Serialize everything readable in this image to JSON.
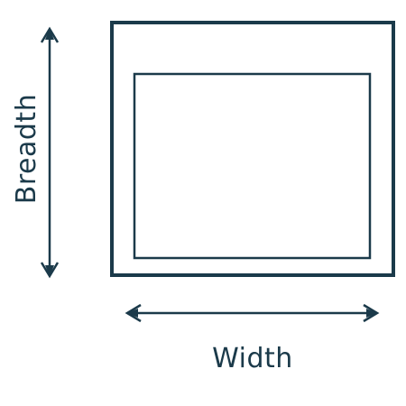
{
  "colors": {
    "stroke": "#1b3a4a",
    "background": "#ffffff"
  },
  "labels": {
    "breadth": "Breadth",
    "width": "Width"
  },
  "icons": {
    "breadth_arrow": "double-headed-vertical-arrow-icon",
    "width_arrow": "double-headed-horizontal-arrow-icon"
  }
}
